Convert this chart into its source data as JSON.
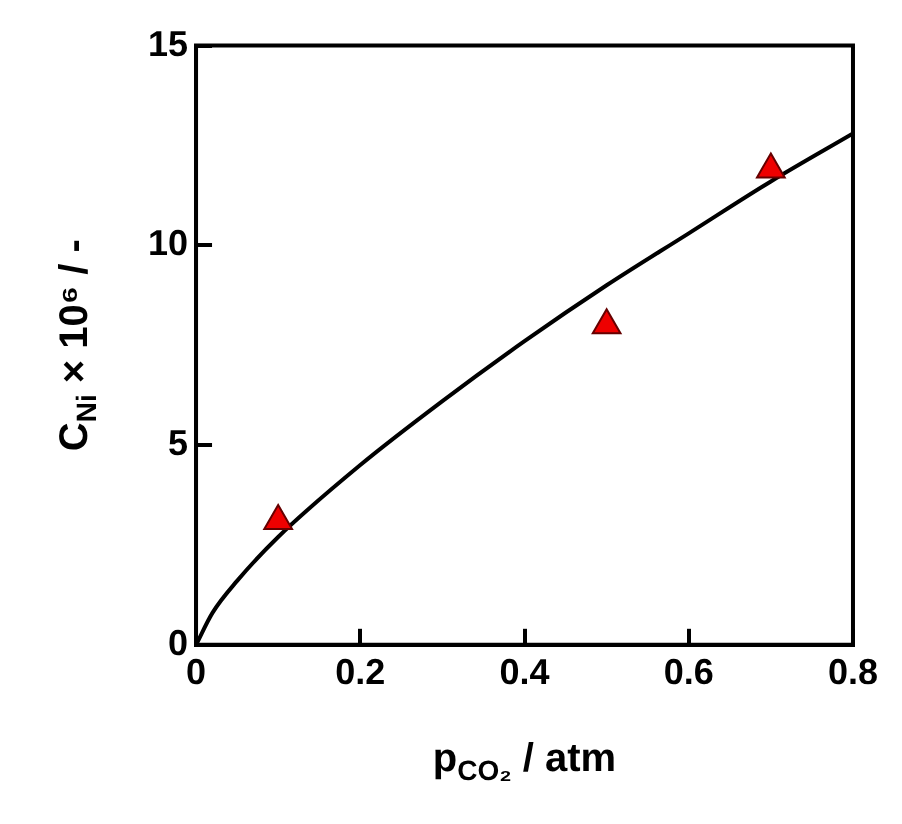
{
  "chart_data": {
    "type": "scatter",
    "xlabel": "p$_{CO₂}$ / atm",
    "ylabel": "C$_{Ni}$ × 10⁶ / -",
    "xlim": [
      0,
      0.8
    ],
    "ylim": [
      0,
      15
    ],
    "xticks": [
      0,
      0.2,
      0.4,
      0.6,
      0.8
    ],
    "yticks": [
      0,
      5,
      10,
      15
    ],
    "grid": false,
    "legend": false,
    "marker": "triangle",
    "series": [
      {
        "color": "#ee0000",
        "x": [
          0.1,
          0.5,
          0.7
        ],
        "values": [
          3.1,
          8.0,
          11.9
        ]
      },
      {
        "type": "line",
        "color": "#000000",
        "marker": "none",
        "x": [
          0,
          0.02,
          0.05,
          0.1,
          0.2,
          0.3,
          0.4,
          0.5,
          0.6,
          0.7,
          0.8
        ],
        "values": [
          0,
          0.8,
          1.6,
          2.7,
          4.5,
          6.1,
          7.6,
          9.0,
          10.3,
          11.6,
          12.8
        ]
      }
    ]
  }
}
